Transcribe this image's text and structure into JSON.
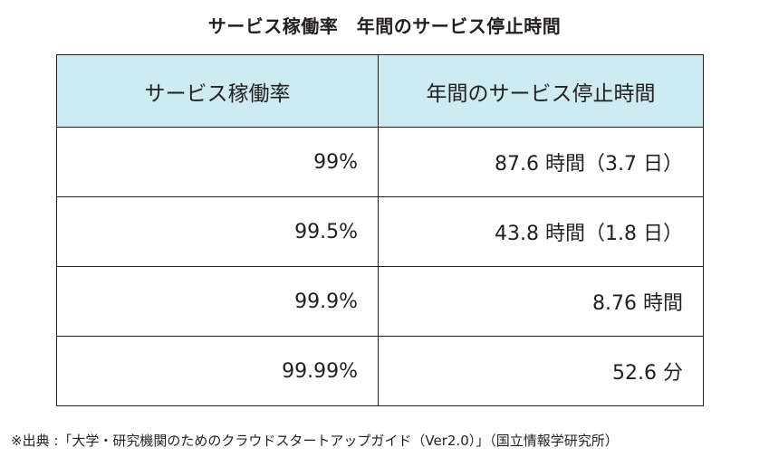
{
  "title": "サービス稼働率　年間のサービス停止時間",
  "table": {
    "headers": [
      "サービス稼働率",
      "年間のサービス停止時間"
    ],
    "rows": [
      [
        "99%",
        "87.6 時間（3.7 日）"
      ],
      [
        "99.5%",
        "43.8 時間（1.8 日）"
      ],
      [
        "99.9%",
        "8.76 時間"
      ],
      [
        "99.99%",
        "52.6 分"
      ]
    ]
  },
  "footnote": "※出典 :「大学・研究機関のためのクラウドスタートアップガイド（Ver2.0）」（国立情報学研究所）"
}
